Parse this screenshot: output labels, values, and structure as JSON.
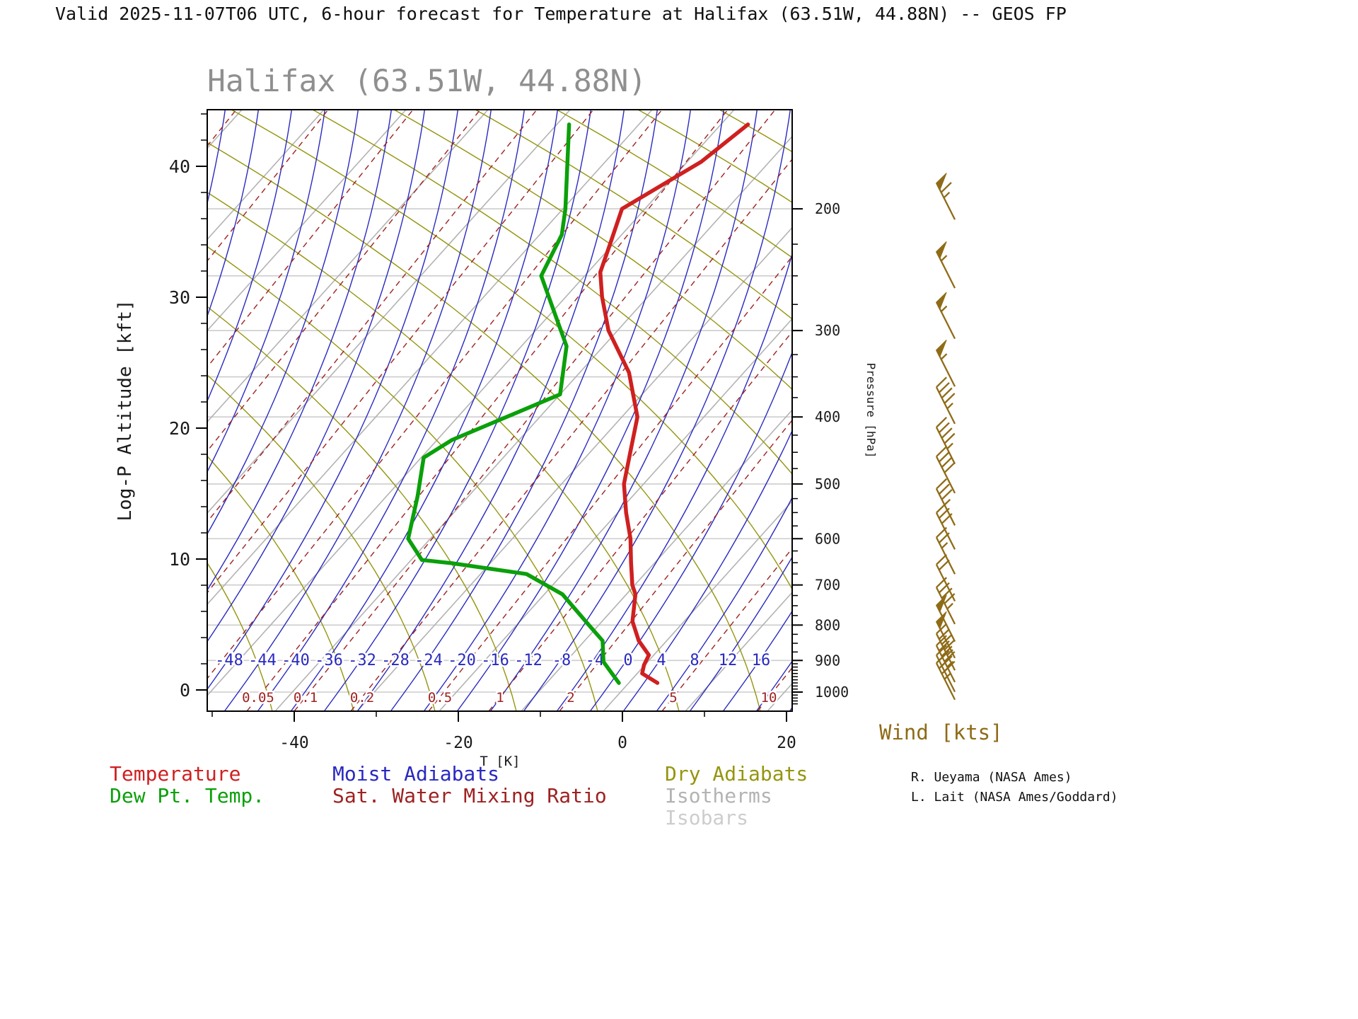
{
  "header": {
    "title": "Valid 2025-11-07T06 UTC, 6-hour forecast for Temperature at Halifax (63.51W, 44.88N) -- GEOS FP"
  },
  "chart": {
    "title": "Halifax (63.51W, 44.88N)"
  },
  "legend": {
    "temperature": "Temperature",
    "dewpoint": "Dew Pt. Temp.",
    "moist_adiabats": "Moist Adiabats",
    "mixing_ratio": "Sat. Water Mixing Ratio",
    "dry_adiabats": "Dry Adiabats",
    "isotherms": "Isotherms",
    "isobars": "Isobars"
  },
  "wind_label": "Wind [kts]",
  "credits": [
    "R. Ueyama (NASA Ames)",
    "L. Lait (NASA Ames/Goddard)"
  ],
  "colors": {
    "temperature": "#cf2020",
    "dewpoint": "#0aa00a",
    "moist_adiabat": "#2929c0",
    "mixing_ratio": "#9e2121",
    "dry_adiabat": "#95950f",
    "isotherm": "#b3b3b3",
    "isobar": "#cdcdcd",
    "wind": "#8f6b17",
    "axis_text": "#1a1a1a",
    "title_gray": "#8f8f8f"
  },
  "chart_data": {
    "type": "skewt-logp",
    "title": "Halifax (63.51W, 44.88N)",
    "x_axis": {
      "label": "T [K]",
      "ticks": [
        -40,
        -20,
        0,
        20
      ]
    },
    "y_axis_left": {
      "label": "Log-P Altitude [kft]",
      "ticks": [
        0,
        10,
        20,
        30,
        40
      ]
    },
    "y_axis_right": {
      "label": "Pressure [hPa]",
      "ticks": [
        200,
        300,
        400,
        500,
        600,
        700,
        800,
        900,
        1000
      ]
    },
    "isobar_levels": [
      200,
      250,
      300,
      350,
      400,
      500,
      600,
      700,
      800,
      900,
      1000
    ],
    "isotherm_line_labels": [
      -48,
      -44,
      -40,
      -36,
      -32,
      -28,
      -24,
      -20,
      -16,
      -12,
      -8,
      -4,
      0,
      4,
      8,
      12,
      16
    ],
    "mixing_ratio_line_labels": [
      "0.05",
      "0.1",
      "0.2",
      "0.5",
      "1",
      "2",
      "5",
      "10"
    ],
    "temperature_profile": [
      {
        "p": 970,
        "t": 3.5
      },
      {
        "p": 940,
        "t": 0.6
      },
      {
        "p": 914,
        "t": -0.1
      },
      {
        "p": 884,
        "t": -0.6
      },
      {
        "p": 843,
        "t": -3.4
      },
      {
        "p": 790,
        "t": -6.3
      },
      {
        "p": 722,
        "t": -8.9
      },
      {
        "p": 700,
        "t": -10.3
      },
      {
        "p": 650,
        "t": -12.9
      },
      {
        "p": 600,
        "t": -15.6
      },
      {
        "p": 550,
        "t": -19.0
      },
      {
        "p": 500,
        "t": -22.4
      },
      {
        "p": 450,
        "t": -25.1
      },
      {
        "p": 400,
        "t": -28.1
      },
      {
        "p": 345,
        "t": -34.0
      },
      {
        "p": 300,
        "t": -41.1
      },
      {
        "p": 268,
        "t": -45.6
      },
      {
        "p": 247,
        "t": -48.5
      },
      {
        "p": 227,
        "t": -50.2
      },
      {
        "p": 200,
        "t": -52.8
      },
      {
        "p": 171,
        "t": -48.3
      },
      {
        "p": 151,
        "t": -46.7
      }
    ],
    "dewpoint_profile": [
      {
        "p": 970,
        "t": -1.2
      },
      {
        "p": 904,
        "t": -5.4
      },
      {
        "p": 843,
        "t": -7.8
      },
      {
        "p": 800,
        "t": -11.2
      },
      {
        "p": 722,
        "t": -17.8
      },
      {
        "p": 675,
        "t": -24.4
      },
      {
        "p": 651,
        "t": -34.7
      },
      {
        "p": 644,
        "t": -38.7
      },
      {
        "p": 600,
        "t": -42.7
      },
      {
        "p": 521,
        "t": -46.2
      },
      {
        "p": 458,
        "t": -49.7
      },
      {
        "p": 432,
        "t": -48.2
      },
      {
        "p": 371,
        "t": -40.0
      },
      {
        "p": 316,
        "t": -44.5
      },
      {
        "p": 300,
        "t": -46.9
      },
      {
        "p": 250,
        "t": -55.3
      },
      {
        "p": 218,
        "t": -57.3
      },
      {
        "p": 200,
        "t": -59.7
      },
      {
        "p": 151,
        "t": -68.5
      }
    ],
    "wind_barbs": [
      {
        "p": 195,
        "kts": 65
      },
      {
        "p": 245,
        "kts": 55
      },
      {
        "p": 290,
        "kts": 55
      },
      {
        "p": 340,
        "kts": 55
      },
      {
        "p": 385,
        "kts": 45
      },
      {
        "p": 440,
        "kts": 45
      },
      {
        "p": 485,
        "kts": 40
      },
      {
        "p": 540,
        "kts": 35
      },
      {
        "p": 585,
        "kts": 30
      },
      {
        "p": 635,
        "kts": 25
      },
      {
        "p": 695,
        "kts": 20
      },
      {
        "p": 750,
        "kts": 45
      },
      {
        "p": 795,
        "kts": 50
      },
      {
        "p": 840,
        "kts": 50
      },
      {
        "p": 875,
        "kts": 45
      },
      {
        "p": 910,
        "kts": 45
      },
      {
        "p": 940,
        "kts": 40
      },
      {
        "p": 965,
        "kts": 35
      }
    ]
  }
}
